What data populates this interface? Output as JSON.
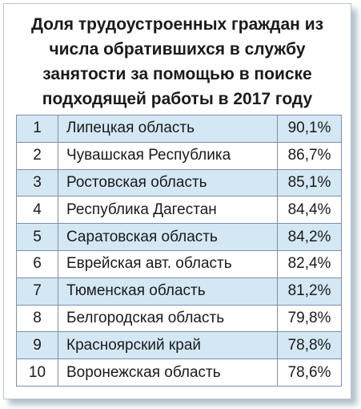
{
  "title": "Доля трудоустроенных граждан из\nчисла обратившихся в службу\nзанятости за помощью в поиске\nподходящей работы в 2017 году",
  "rows": [
    {
      "rank": "1",
      "region": "Липецкая область",
      "percent": "90,1%"
    },
    {
      "rank": "2",
      "region": "Чувашская Республика",
      "percent": "86,7%"
    },
    {
      "rank": "3",
      "region": "Ростовская область",
      "percent": "85,1%"
    },
    {
      "rank": "4",
      "region": "Республика Дагестан",
      "percent": "84,4%"
    },
    {
      "rank": "5",
      "region": "Саратовская область",
      "percent": "84,2%"
    },
    {
      "rank": "6",
      "region": "Еврейская авт. область",
      "percent": "82,4%"
    },
    {
      "rank": "7",
      "region": "Тюменская область",
      "percent": "81,2%"
    },
    {
      "rank": "8",
      "region": "Белгородская область",
      "percent": "79,8%"
    },
    {
      "rank": "9",
      "region": "Красноярский край",
      "percent": "78,8%"
    },
    {
      "rank": "10",
      "region": "Воронежская область",
      "percent": "78,6%"
    }
  ]
}
